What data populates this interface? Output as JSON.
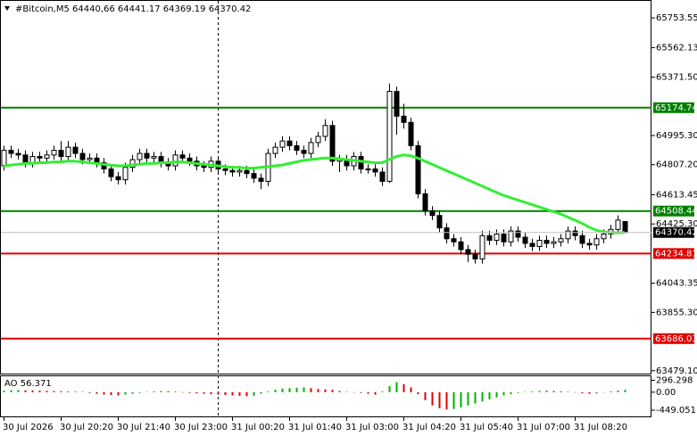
{
  "chart_data": {
    "type": "candlestick",
    "title": "#Bitcoin,M5  64440,66 64441.17 64369.19 64370.42",
    "categories": [
      "30 Jul 2026",
      null,
      null,
      null,
      null,
      null,
      null,
      null,
      "30 Jul 20:20",
      null,
      null,
      null,
      null,
      null,
      null,
      null,
      "30 Jul 21:40",
      null,
      null,
      null,
      null,
      null,
      null,
      null,
      "30 Jul 23:00",
      null,
      null,
      null,
      null,
      null,
      null,
      null,
      "31 Jul 00:20",
      null,
      null,
      null,
      null,
      null,
      null,
      null,
      "31 Jul 01:40",
      null,
      null,
      null,
      null,
      null,
      null,
      null,
      "31 Jul 03:00",
      null,
      null,
      null,
      null,
      null,
      null,
      null,
      "31 Jul 04:20",
      null,
      null,
      null,
      null,
      null,
      null,
      null,
      "31 Jul 05:40",
      null,
      null,
      null,
      null,
      null,
      null,
      null,
      "31 Jul 07:00",
      null,
      null,
      null,
      null,
      null,
      null,
      null,
      "31 Jul 08:20",
      null,
      null,
      null,
      null,
      null,
      null,
      null
    ],
    "open": [
      64800,
      64900,
      64880,
      64870,
      64820,
      64860,
      64850,
      64870,
      64900,
      64860,
      64920,
      64880,
      64840,
      64850,
      64820,
      64780,
      64730,
      64710,
      64790,
      64840,
      64880,
      64850,
      64860,
      64820,
      64800,
      64870,
      64850,
      64830,
      64800,
      64790,
      64830,
      64780,
      64770,
      64760,
      64770,
      64750,
      64720,
      64700,
      64880,
      64920,
      64960,
      64930,
      64900,
      64880,
      64950,
      64990,
      65060,
      64830,
      64840,
      64800,
      64860,
      64780,
      64780,
      64760,
      64700,
      65280,
      65120,
      65080,
      64930,
      64620,
      64510,
      64480,
      64400,
      64330,
      64310,
      64260,
      64230,
      64200,
      64350,
      64320,
      64360,
      64310,
      64380,
      64340,
      64300,
      64280,
      64320,
      64300,
      64310,
      64330,
      64380,
      64350,
      64300,
      64290,
      64330,
      64360,
      64390,
      64440.66
    ],
    "high": [
      64930,
      64930,
      64910,
      64900,
      64890,
      64890,
      64900,
      64930,
      64960,
      64960,
      64950,
      64910,
      64880,
      64880,
      64850,
      64810,
      64760,
      64820,
      64870,
      64910,
      64910,
      64890,
      64890,
      64850,
      64900,
      64900,
      64880,
      64860,
      64830,
      64860,
      64860,
      64810,
      64800,
      64800,
      64800,
      64780,
      64750,
      64910,
      64950,
      64990,
      64990,
      64960,
      64930,
      64980,
      65020,
      65100,
      65090,
      64870,
      64870,
      64890,
      64890,
      64810,
      64810,
      64790,
      65330,
      65310,
      65200,
      65110,
      64960,
      64650,
      64540,
      64510,
      64430,
      64360,
      64340,
      64290,
      64260,
      64380,
      64380,
      64390,
      64390,
      64410,
      64410,
      64370,
      64330,
      64350,
      64350,
      64340,
      64360,
      64410,
      64410,
      64380,
      64330,
      64360,
      64390,
      64420,
      64480,
      64441.17
    ],
    "low": [
      64770,
      64850,
      64840,
      64790,
      64790,
      64820,
      64820,
      64840,
      64830,
      64830,
      64850,
      64810,
      64810,
      64790,
      64750,
      64700,
      64680,
      64680,
      64760,
      64810,
      64820,
      64820,
      64790,
      64770,
      64770,
      64820,
      64800,
      64770,
      64760,
      64760,
      64750,
      64740,
      64730,
      64730,
      64720,
      64690,
      64650,
      64670,
      64850,
      64890,
      64900,
      64870,
      64850,
      64850,
      64920,
      64960,
      64800,
      64760,
      64770,
      64770,
      64750,
      64750,
      64730,
      64670,
      64690,
      65000,
      65040,
      64900,
      64590,
      64480,
      64450,
      64370,
      64300,
      64280,
      64230,
      64180,
      64170,
      64170,
      64290,
      64290,
      64280,
      64280,
      64310,
      64270,
      64250,
      64250,
      64270,
      64270,
      64280,
      64300,
      64320,
      64270,
      64260,
      64260,
      64300,
      64330,
      64360,
      64369.19
    ],
    "close": [
      64900,
      64880,
      64870,
      64820,
      64860,
      64850,
      64870,
      64900,
      64860,
      64920,
      64880,
      64840,
      64850,
      64820,
      64780,
      64730,
      64710,
      64790,
      64840,
      64880,
      64850,
      64860,
      64820,
      64800,
      64870,
      64850,
      64830,
      64800,
      64790,
      64830,
      64780,
      64770,
      64760,
      64770,
      64750,
      64720,
      64700,
      64880,
      64920,
      64960,
      64930,
      64900,
      64880,
      64950,
      64990,
      65060,
      64830,
      64840,
      64800,
      64860,
      64780,
      64780,
      64760,
      64700,
      65280,
      65120,
      65080,
      64930,
      64620,
      64510,
      64480,
      64400,
      64330,
      64310,
      64260,
      64230,
      64200,
      64350,
      64320,
      64360,
      64310,
      64380,
      64340,
      64300,
      64280,
      64320,
      64300,
      64310,
      64330,
      64380,
      64350,
      64300,
      64290,
      64330,
      64360,
      64390,
      64450,
      64370.42
    ],
    "bull_color": "#ffffff",
    "bear_color": "#000000",
    "ma": {
      "color": "#33ee33",
      "values": [
        64800,
        64805,
        64810,
        64815,
        64815,
        64820,
        64820,
        64825,
        64825,
        64830,
        64830,
        64825,
        64820,
        64815,
        64810,
        64805,
        64800,
        64800,
        64805,
        64810,
        64815,
        64815,
        64820,
        64820,
        64825,
        64825,
        64820,
        64815,
        64810,
        64805,
        64800,
        64795,
        64790,
        64790,
        64785,
        64785,
        64790,
        64795,
        64800,
        64805,
        64815,
        64825,
        64835,
        64840,
        64845,
        64850,
        64850,
        64845,
        64840,
        64835,
        64830,
        64825,
        64820,
        64820,
        64840,
        64860,
        64870,
        64865,
        64850,
        64830,
        64810,
        64790,
        64770,
        64750,
        64730,
        64710,
        64690,
        64670,
        64650,
        64630,
        64610,
        64595,
        64580,
        64565,
        64550,
        64535,
        64520,
        64505,
        64490,
        64470,
        64450,
        64430,
        64405,
        64385,
        64375,
        64370,
        64368,
        64370
      ]
    },
    "levels": [
      {
        "value": 65174.74,
        "color": "#008000"
      },
      {
        "value": 64508.44,
        "color": "#008000"
      },
      {
        "value": 64234.81,
        "color": "#e00000"
      },
      {
        "value": 63686.03,
        "color": "#e00000"
      }
    ],
    "ylim": [
      63455,
      65800
    ],
    "yticks": [
      {
        "value": 65753.55,
        "label": "65753.55"
      },
      65562.13,
      {
        "value": 65371.5,
        "label": "65371.50"
      },
      {
        "value": 64995.3,
        "label": "64995.30"
      },
      {
        "value": 64807.2,
        "label": "64807.20"
      },
      64613.45,
      {
        "value": 64425.3,
        "label": "64425.30"
      },
      64043.35,
      {
        "value": 63855.3,
        "label": "63855.30"
      },
      {
        "value": 63479.1,
        "label": "63479.10"
      }
    ],
    "ao": {
      "label": "AO 56.371",
      "up_color": "#00b000",
      "down_color": "#e00000",
      "values": [
        40,
        50,
        55,
        50,
        45,
        40,
        35,
        30,
        25,
        20,
        15,
        10,
        -20,
        -40,
        -60,
        -70,
        -80,
        -60,
        -40,
        -20,
        10,
        20,
        30,
        25,
        15,
        -10,
        -20,
        -30,
        -40,
        -50,
        -60,
        -70,
        -80,
        -90,
        -100,
        -90,
        -40,
        20,
        60,
        90,
        100,
        110,
        120,
        100,
        80,
        70,
        60,
        30,
        10,
        -10,
        -20,
        -40,
        -60,
        20,
        150,
        250,
        200,
        120,
        -50,
        -200,
        -330,
        -400,
        -430,
        -420,
        -380,
        -330,
        -280,
        -230,
        -180,
        -130,
        -80,
        -50,
        -20,
        10,
        20,
        30,
        40,
        30,
        20,
        10,
        -10,
        -30,
        -40,
        -30,
        -10,
        20,
        40,
        56.371
      ],
      "ylim": [
        -470,
        330
      ],
      "yticks": [
        296.298,
        {
          "value": 0,
          "label": "0.00"
        },
        -449.051
      ]
    }
  }
}
